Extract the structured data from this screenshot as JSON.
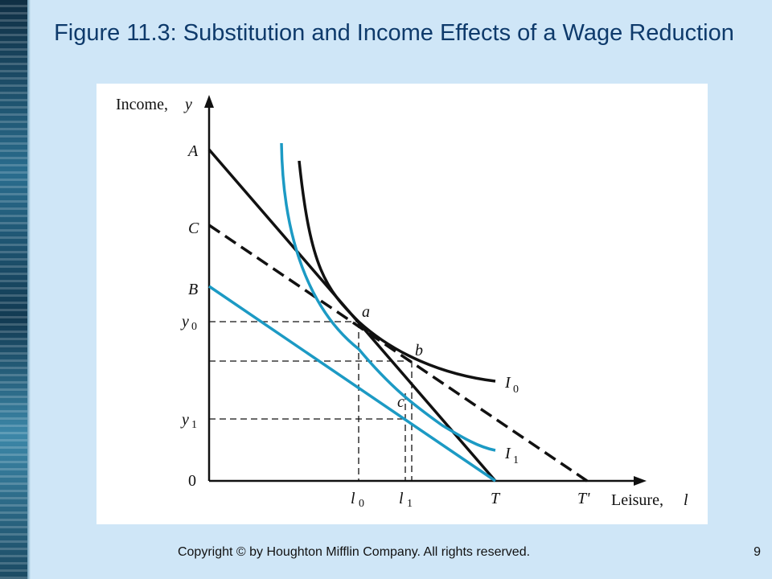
{
  "slide": {
    "title": "Figure 11.3: Substitution and Income Effects of a Wage Reduction",
    "footer": "Copyright © by Houghton Mifflin Company. All rights reserved.",
    "page_number": "9"
  },
  "diagram": {
    "y_axis": {
      "label": "Income,",
      "var": "y"
    },
    "x_axis": {
      "label": "Leisure,",
      "var": "l"
    },
    "y_points": {
      "A": "A",
      "C": "C",
      "B": "B",
      "y0": "y",
      "y0_sub": "0",
      "y1": "y",
      "y1_sub": "1",
      "origin": "0"
    },
    "x_points": {
      "l0": "l",
      "l0_sub": "0",
      "l1": "l",
      "l1_sub": "1",
      "T": "T",
      "Tprime": "T'"
    },
    "points": {
      "a": "a",
      "b": "b",
      "c": "c"
    },
    "curves": {
      "I0": "I",
      "I0_sub": "0",
      "I1": "I",
      "I1_sub": "1"
    },
    "colors": {
      "black": "#111111",
      "blue": "#1c9ac4"
    }
  }
}
